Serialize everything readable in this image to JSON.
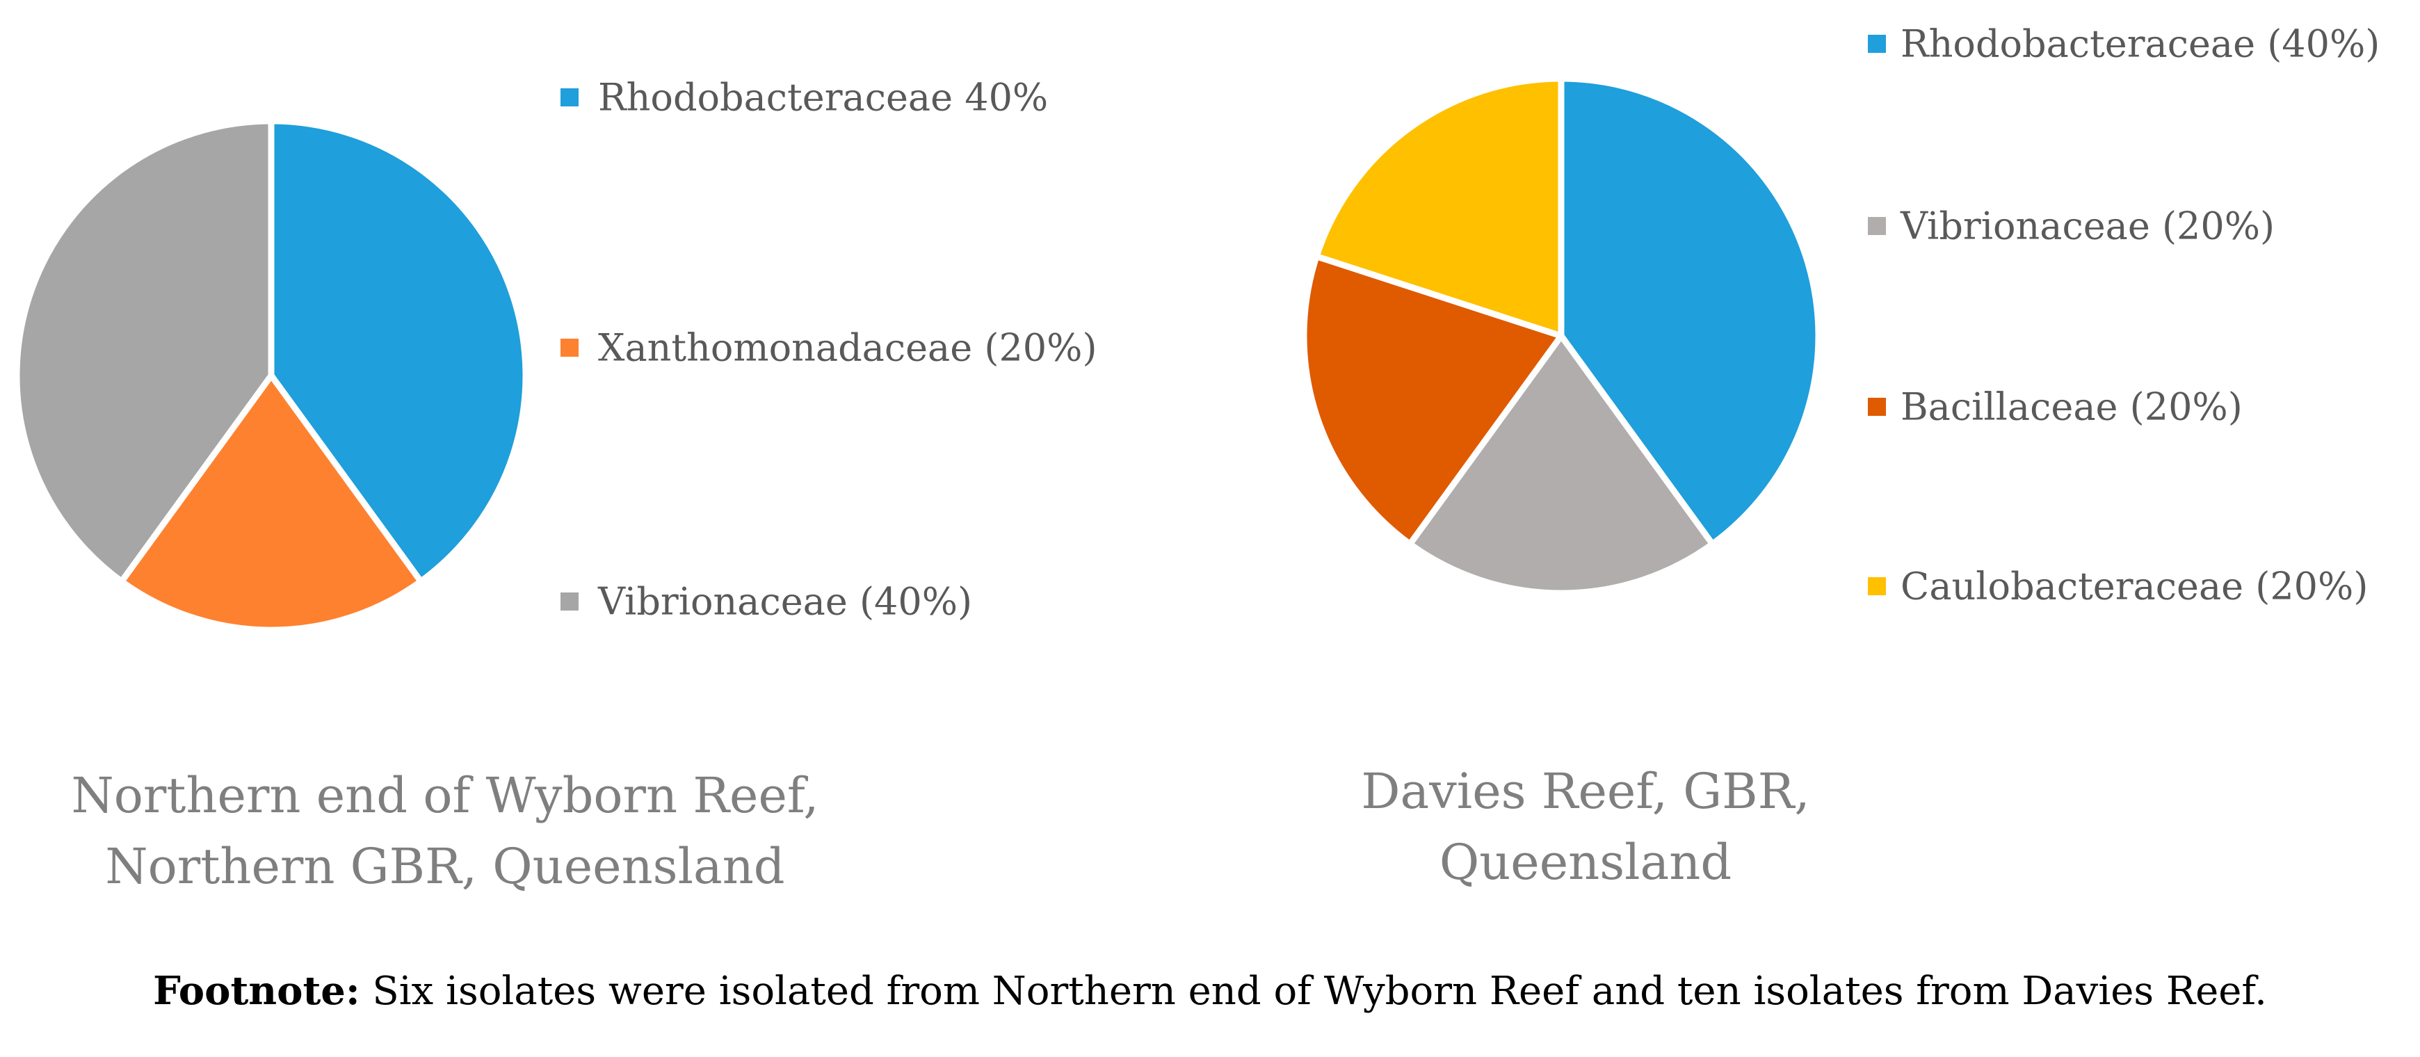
{
  "chart_data": [
    {
      "type": "pie",
      "title": "",
      "caption_lines": [
        "Northern end of Wyborn Reef,",
        "Northern GBR, Queensland"
      ],
      "legend_position": "right",
      "slices": [
        {
          "label": "Rhodobacteraceae 40%",
          "value": 40,
          "color": "#1f9fdb"
        },
        {
          "label": "Xanthomonadaceae (20%)",
          "value": 20,
          "color": "#fe8130"
        },
        {
          "label": "Vibrionaceae (40%)",
          "value": 40,
          "color": "#a6a6a6"
        }
      ]
    },
    {
      "type": "pie",
      "title": "",
      "caption_lines": [
        "Davies Reef, GBR,",
        "Queensland"
      ],
      "legend_position": "right",
      "slices": [
        {
          "label": "Rhodobacteraceae (40%)",
          "value": 40,
          "color": "#1f9fdb"
        },
        {
          "label": "Vibrionaceae (20%)",
          "value": 20,
          "color": "#b0adac"
        },
        {
          "label": "Bacillaceae (20%)",
          "value": 20,
          "color": "#e05a00"
        },
        {
          "label": "Caulobacteraceae (20%)",
          "value": 20,
          "color": "#ffc000"
        }
      ]
    }
  ],
  "footnote": {
    "label": "Footnote:",
    "text": " Six isolates were isolated from Northern end of Wyborn Reef and ten isolates from Davies Reef."
  }
}
